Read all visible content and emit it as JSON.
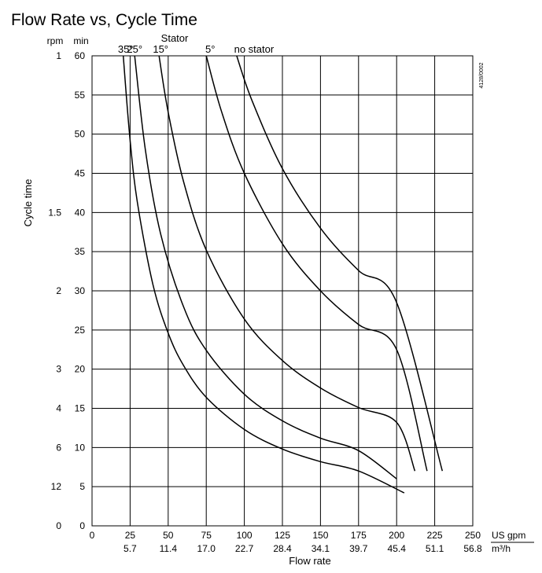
{
  "chart_data": {
    "type": "line",
    "title": "Flow Rate vs, Cycle Time",
    "xlabel": "Flow rate",
    "ylabel": "Cycle time",
    "x_unit_primary": "US gpm",
    "x_unit_secondary": "m³/h",
    "y_unit_min": "min",
    "y_unit_rpm": "rpm",
    "xlim": [
      0,
      250
    ],
    "ylim": [
      0,
      60
    ],
    "grid": true,
    "x_ticks": [
      0,
      25,
      50,
      75,
      100,
      125,
      150,
      175,
      200,
      225,
      250
    ],
    "x_ticks_secondary": [
      "5.7",
      "11.4",
      "17.0",
      "22.7",
      "28.4",
      "34.1",
      "39.7",
      "45.4",
      "51.1",
      "56.8"
    ],
    "x_ticks_secondary_at": [
      25,
      50,
      75,
      100,
      125,
      150,
      175,
      200,
      225,
      250
    ],
    "y_ticks": [
      0,
      5,
      10,
      15,
      20,
      25,
      30,
      35,
      40,
      45,
      50,
      55,
      60
    ],
    "rpm_ticks": [
      {
        "label": "1",
        "at": 60
      },
      {
        "label": "1.5",
        "at": 40
      },
      {
        "label": "2",
        "at": 30
      },
      {
        "label": "3",
        "at": 20
      },
      {
        "label": "4",
        "at": 15
      },
      {
        "label": "6",
        "at": 10
      },
      {
        "label": "12",
        "at": 5
      },
      {
        "label": "0",
        "at": 0
      }
    ],
    "legend_title": "Stator",
    "figure_code": "4128/0002",
    "series": [
      {
        "name": "35°",
        "x": [
          20.5,
          25,
          30,
          40,
          50,
          60,
          75,
          100,
          125,
          150,
          175,
          205
        ],
        "y": [
          60,
          49.2,
          41,
          30.8,
          24.6,
          20.5,
          16.4,
          12.3,
          9.8,
          8.2,
          7.0,
          4.2
        ]
      },
      {
        "name": "25°",
        "x": [
          28,
          35,
          45,
          60,
          75,
          100,
          125,
          150,
          175,
          200
        ],
        "y": [
          60,
          48,
          37.3,
          28,
          22.4,
          16.8,
          13.4,
          11.2,
          9.6,
          6.0
        ]
      },
      {
        "name": "15°",
        "x": [
          44,
          50,
          60,
          75,
          100,
          125,
          150,
          175,
          200,
          212
        ],
        "y": [
          60,
          52.8,
          44,
          35.2,
          26.4,
          21.1,
          17.6,
          15.1,
          13.2,
          7.0
        ]
      },
      {
        "name": "5°",
        "x": [
          75,
          85,
          100,
          125,
          150,
          175,
          200,
          220
        ],
        "y": [
          60,
          52.9,
          45,
          36,
          30,
          25.7,
          22.5,
          7.0
        ]
      },
      {
        "name": "no stator",
        "x": [
          95,
          105,
          125,
          150,
          175,
          200,
          230
        ],
        "y": [
          60,
          54.3,
          45.6,
          38,
          32.6,
          28.5,
          7.0
        ]
      }
    ]
  }
}
